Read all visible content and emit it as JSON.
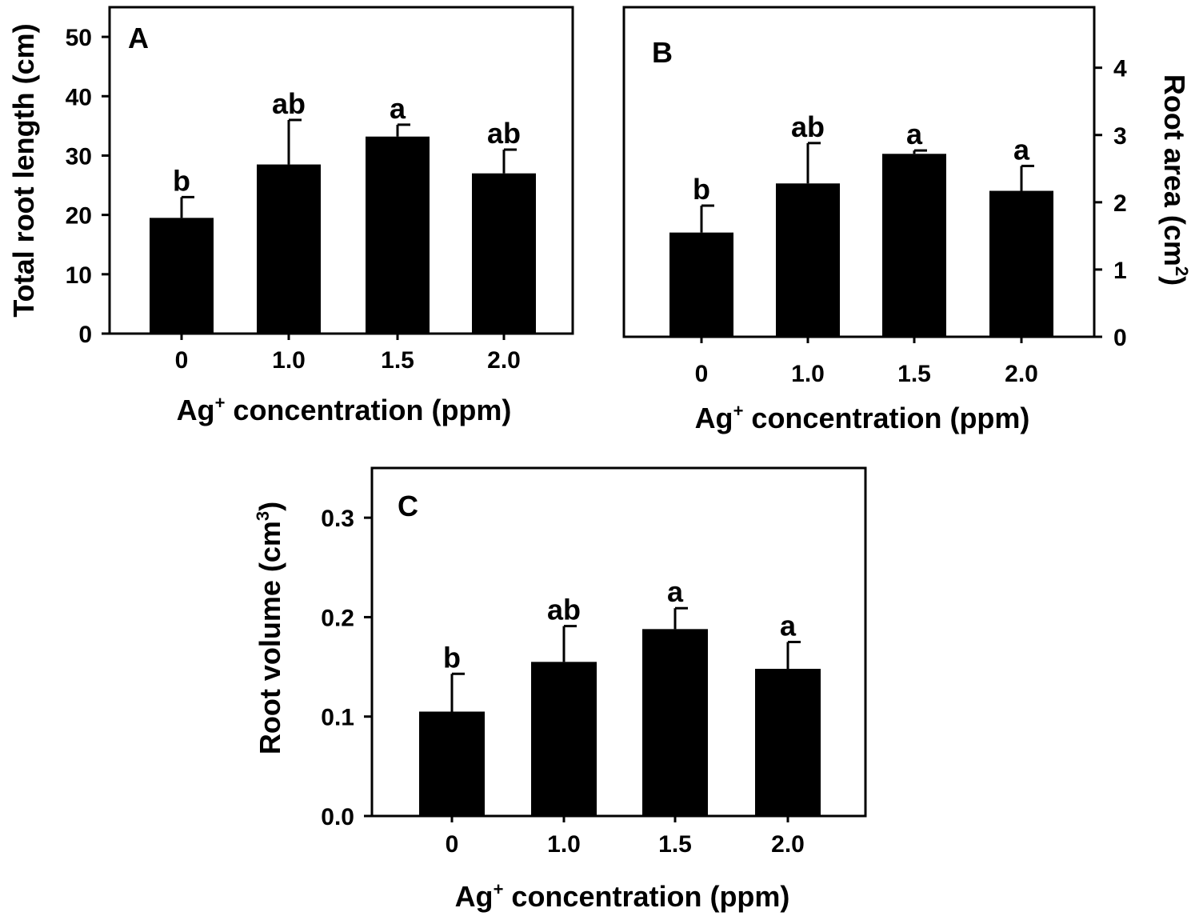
{
  "chart_data": [
    {
      "type": "bar",
      "panel": "A",
      "categories": [
        "0",
        "1.0",
        "1.5",
        "2.0"
      ],
      "values": [
        19.5,
        28.5,
        33.2,
        27.0
      ],
      "errors": [
        3.5,
        7.5,
        2.0,
        4.0
      ],
      "significance": [
        "b",
        "ab",
        "a",
        "ab"
      ],
      "ylabel": "Total root length (cm)",
      "xlabel_base": "Ag",
      "xlabel_sup": "+",
      "xlabel_rest": " concentration (ppm)",
      "yticks": [
        0,
        10,
        20,
        30,
        40,
        50
      ],
      "ylim": [
        0,
        55
      ],
      "y_axis_side": "left",
      "grid": false
    },
    {
      "type": "bar",
      "panel": "B",
      "categories": [
        "0",
        "1.0",
        "1.5",
        "2.0"
      ],
      "values": [
        1.55,
        2.28,
        2.72,
        2.17
      ],
      "errors": [
        0.4,
        0.6,
        0.05,
        0.37
      ],
      "significance": [
        "b",
        "ab",
        "a",
        "a"
      ],
      "ylabel_base": "Root area (cm",
      "ylabel_sup": "2",
      "ylabel_rest": ")",
      "xlabel_base": "Ag",
      "xlabel_sup": "+",
      "xlabel_rest": " concentration (ppm)",
      "yticks": [
        0,
        1,
        2,
        3,
        4
      ],
      "ylim": [
        0,
        4.9
      ],
      "y_axis_side": "right",
      "grid": false
    },
    {
      "type": "bar",
      "panel": "C",
      "categories": [
        "0",
        "1.0",
        "1.5",
        "2.0"
      ],
      "values": [
        0.105,
        0.155,
        0.188,
        0.148
      ],
      "errors": [
        0.038,
        0.036,
        0.021,
        0.027
      ],
      "significance": [
        "b",
        "ab",
        "a",
        "a"
      ],
      "ylabel_base": "Root volume (cm",
      "ylabel_sup": "3",
      "ylabel_rest": ")",
      "xlabel_base": "Ag",
      "xlabel_sup": "+",
      "xlabel_rest": " concentration (ppm)",
      "yticks": [
        "0.0",
        "0.1",
        "0.2",
        "0.3"
      ],
      "ylim": [
        0,
        0.35
      ],
      "y_axis_side": "left",
      "grid": false
    }
  ]
}
